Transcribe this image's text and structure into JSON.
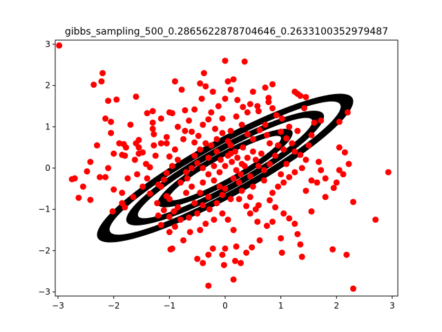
{
  "chart_data": {
    "type": "scatter",
    "title": "gibbs_sampling_500_0.2865622878704646_0.2633100352979487",
    "xlabel": "",
    "ylabel": "",
    "xlim": [
      -3.05,
      3.1
    ],
    "ylim": [
      -3.1,
      3.1
    ],
    "xticks": [
      -3,
      -2,
      -1,
      0,
      1,
      2,
      3
    ],
    "yticks": [
      -3,
      -2,
      -1,
      0,
      1,
      2,
      3
    ],
    "grid": false,
    "legend": "none",
    "contours": {
      "type": "ellipse-contours",
      "color": "#000000",
      "center": [
        0,
        0
      ],
      "angle_deg": 37.3,
      "bands": [
        {
          "outer": [
            2.85,
            0.64
          ],
          "inner": [
            2.58,
            0.5
          ]
        },
        {
          "outer": [
            2.2,
            0.49
          ],
          "inner": [
            1.95,
            0.36
          ]
        },
        {
          "outer": [
            1.5,
            0.35
          ],
          "inner": [
            1.25,
            0.23
          ]
        }
      ]
    },
    "series": [
      {
        "color": "#ff0000",
        "marker": "circle",
        "points": [
          [
            -2.98,
            2.97
          ],
          [
            -2.2,
            2.3
          ],
          [
            -2.22,
            2.1
          ],
          [
            -2.36,
            2.02
          ],
          [
            -1.95,
            1.66
          ],
          [
            -2.1,
            1.63
          ],
          [
            -1.6,
            1.73
          ],
          [
            -2.15,
            1.2
          ],
          [
            -2.05,
            1.12
          ],
          [
            -1.7,
            1.05
          ],
          [
            -2.0,
            0.35
          ],
          [
            -1.9,
            0.6
          ],
          [
            -1.82,
            0.58
          ],
          [
            -1.78,
            0.5
          ],
          [
            -1.55,
            0.68
          ],
          [
            -1.6,
            0.6
          ],
          [
            -1.55,
            0.5
          ],
          [
            -1.85,
            0.32
          ],
          [
            -1.8,
            0.3
          ],
          [
            -1.62,
            0.2
          ],
          [
            -2.42,
            0.15
          ],
          [
            -2.48,
            -0.08
          ],
          [
            -2.1,
            0.0
          ],
          [
            -2.15,
            -0.22
          ],
          [
            -2.25,
            -0.22
          ],
          [
            -2.75,
            -0.27
          ],
          [
            -2.7,
            -0.25
          ],
          [
            -2.55,
            -0.45
          ],
          [
            -2.63,
            -0.72
          ],
          [
            -2.42,
            -0.77
          ],
          [
            -2.0,
            -0.52
          ],
          [
            -1.85,
            -0.6
          ],
          [
            -1.85,
            -0.85
          ],
          [
            -1.8,
            -0.95
          ],
          [
            -2.02,
            -1.05
          ],
          [
            -1.65,
            -0.7
          ],
          [
            -1.75,
            -0.25
          ],
          [
            -1.58,
            -0.15
          ],
          [
            -1.48,
            0.38
          ],
          [
            -1.42,
            0.1
          ],
          [
            -1.35,
            0.02
          ],
          [
            -1.4,
            -0.25
          ],
          [
            -1.48,
            -0.45
          ],
          [
            -1.35,
            -0.62
          ],
          [
            -1.2,
            -0.4
          ],
          [
            -1.4,
            1.33
          ],
          [
            -1.3,
            1.38
          ],
          [
            -1.3,
            1.1
          ],
          [
            -1.28,
            0.82
          ],
          [
            -1.28,
            0.55
          ],
          [
            -1.25,
            0.3
          ],
          [
            -1.15,
            0.6
          ],
          [
            -1.0,
            1.35
          ],
          [
            -0.95,
            1.33
          ],
          [
            -0.85,
            1.0
          ],
          [
            -0.72,
            1.4
          ],
          [
            -0.78,
            1.9
          ],
          [
            -0.9,
            2.1
          ],
          [
            -0.55,
            1.42
          ],
          [
            -1.05,
            0.75
          ],
          [
            -1.05,
            0.6
          ],
          [
            -1.0,
            0.28
          ],
          [
            -0.95,
            0.05
          ],
          [
            -1.05,
            -0.12
          ],
          [
            -1.1,
            -0.28
          ],
          [
            -1.15,
            -0.45
          ],
          [
            -1.05,
            -0.68
          ],
          [
            -1.0,
            -0.75
          ],
          [
            -1.22,
            -0.85
          ],
          [
            -1.1,
            -1.02
          ],
          [
            -1.2,
            -1.15
          ],
          [
            -1.15,
            -1.38
          ],
          [
            -1.0,
            -1.18
          ],
          [
            -0.92,
            -1.05
          ],
          [
            -0.9,
            -1.42
          ],
          [
            -1.0,
            -1.55
          ],
          [
            -0.8,
            -1.25
          ],
          [
            -0.95,
            -1.95
          ],
          [
            -0.98,
            -1.97
          ],
          [
            -0.75,
            -1.75
          ],
          [
            -0.63,
            -1.55
          ],
          [
            -0.45,
            -1.5
          ],
          [
            -0.35,
            -1.35
          ],
          [
            -0.28,
            -1.0
          ],
          [
            -0.4,
            -0.9
          ],
          [
            -0.55,
            -0.85
          ],
          [
            -0.7,
            -0.6
          ],
          [
            -0.8,
            -0.35
          ],
          [
            -0.68,
            -0.25
          ],
          [
            -0.9,
            0.45
          ],
          [
            -0.75,
            0.7
          ],
          [
            -0.72,
            0.9
          ],
          [
            -0.6,
            0.88
          ],
          [
            -0.55,
            0.62
          ],
          [
            -0.45,
            0.45
          ],
          [
            -0.48,
            0.78
          ],
          [
            -0.4,
            1.05
          ],
          [
            -0.3,
            1.18
          ],
          [
            -0.25,
            1.35
          ],
          [
            -0.42,
            1.68
          ],
          [
            -0.45,
            2.05
          ],
          [
            -0.38,
            2.3
          ],
          [
            -0.35,
            1.98
          ],
          [
            -0.22,
            1.85
          ],
          [
            -0.12,
            1.5
          ],
          [
            0.0,
            1.68
          ],
          [
            -0.18,
            0.95
          ],
          [
            -0.05,
            0.85
          ],
          [
            0.05,
            0.65
          ],
          [
            0.1,
            0.55
          ],
          [
            -0.15,
            0.4
          ],
          [
            -0.3,
            0.25
          ],
          [
            -0.5,
            0.12
          ],
          [
            -0.4,
            0.0
          ],
          [
            -0.3,
            -0.15
          ],
          [
            -0.2,
            -0.3
          ],
          [
            -0.1,
            -0.45
          ],
          [
            -0.05,
            -0.65
          ],
          [
            -0.15,
            -0.85
          ],
          [
            -0.05,
            -1.1
          ],
          [
            0.05,
            -1.25
          ],
          [
            0.15,
            -1.5
          ],
          [
            0.2,
            -1.9
          ],
          [
            0.18,
            -2.25
          ],
          [
            0.15,
            -2.7
          ],
          [
            -0.3,
            -2.85
          ],
          [
            -0.5,
            -2.2
          ],
          [
            -0.4,
            -2.3
          ],
          [
            -0.3,
            -2.1
          ],
          [
            -0.22,
            -1.95
          ],
          [
            0.0,
            -1.95
          ],
          [
            -0.05,
            -2.1
          ],
          [
            -0.02,
            -2.35
          ],
          [
            0.28,
            -2.3
          ],
          [
            0.38,
            -2.05
          ],
          [
            0.48,
            -1.92
          ],
          [
            0.62,
            -1.75
          ],
          [
            0.75,
            -1.4
          ],
          [
            0.58,
            -1.3
          ],
          [
            0.45,
            -1.1
          ],
          [
            0.38,
            -0.92
          ],
          [
            0.25,
            -0.75
          ],
          [
            0.3,
            -0.55
          ],
          [
            0.5,
            -0.45
          ],
          [
            0.45,
            -0.2
          ],
          [
            0.35,
            0.05
          ],
          [
            0.22,
            0.25
          ],
          [
            0.12,
            0.15
          ],
          [
            0.0,
            0.05
          ],
          [
            -0.08,
            0.2
          ],
          [
            0.05,
            0.3
          ],
          [
            0.18,
            0.4
          ],
          [
            0.32,
            0.5
          ],
          [
            0.5,
            0.7
          ],
          [
            0.62,
            0.92
          ],
          [
            0.72,
            1.05
          ],
          [
            0.6,
            1.38
          ],
          [
            0.45,
            1.55
          ],
          [
            0.32,
            1.48
          ],
          [
            0.22,
            1.65
          ],
          [
            0.1,
            1.9
          ],
          [
            0.05,
            2.1
          ],
          [
            0.15,
            2.15
          ],
          [
            0.0,
            2.6
          ],
          [
            0.35,
            2.58
          ],
          [
            0.5,
            1.85
          ],
          [
            0.58,
            1.5
          ],
          [
            0.72,
            1.95
          ],
          [
            0.85,
            2.03
          ],
          [
            0.78,
            1.7
          ],
          [
            0.85,
            1.45
          ],
          [
            0.78,
            1.6
          ],
          [
            0.92,
            1.28
          ],
          [
            1.02,
            1.2
          ],
          [
            1.0,
            0.88
          ],
          [
            1.15,
            1.0
          ],
          [
            1.1,
            0.72
          ],
          [
            1.2,
            0.6
          ],
          [
            1.25,
            0.4
          ],
          [
            1.35,
            0.32
          ],
          [
            1.45,
            0.2
          ],
          [
            1.38,
            0.0
          ],
          [
            1.25,
            -0.1
          ],
          [
            1.15,
            -0.22
          ],
          [
            1.05,
            -0.35
          ],
          [
            0.95,
            -0.45
          ],
          [
            0.85,
            -0.6
          ],
          [
            0.8,
            -0.78
          ],
          [
            0.9,
            -0.95
          ],
          [
            1.05,
            -1.1
          ],
          [
            1.15,
            -1.22
          ],
          [
            1.25,
            -1.35
          ],
          [
            1.3,
            -1.6
          ],
          [
            1.35,
            -1.85
          ],
          [
            1.38,
            -2.15
          ],
          [
            1.0,
            -1.7
          ],
          [
            1.02,
            -2.05
          ],
          [
            1.8,
            -0.7
          ],
          [
            1.65,
            -0.35
          ],
          [
            1.55,
            -0.3
          ],
          [
            1.72,
            -0.05
          ],
          [
            1.68,
            0.15
          ],
          [
            1.5,
            0.55
          ],
          [
            1.6,
            1.1
          ],
          [
            1.42,
            1.45
          ],
          [
            1.3,
            1.8
          ],
          [
            1.35,
            1.75
          ],
          [
            1.45,
            1.72
          ],
          [
            1.25,
            1.85
          ],
          [
            1.72,
            1.15
          ],
          [
            2.05,
            1.12
          ],
          [
            2.2,
            1.35
          ],
          [
            2.05,
            0.5
          ],
          [
            2.15,
            0.38
          ],
          [
            2.22,
            0.1
          ],
          [
            2.05,
            -0.05
          ],
          [
            2.12,
            -0.15
          ],
          [
            2.0,
            -0.35
          ],
          [
            1.95,
            -0.48
          ],
          [
            2.3,
            -0.82
          ],
          [
            2.3,
            -2.92
          ],
          [
            2.7,
            -1.25
          ],
          [
            2.93,
            -0.1
          ],
          [
            1.93,
            -1.97
          ],
          [
            2.18,
            -2.1
          ],
          [
            0.2,
            -0.05
          ],
          [
            0.3,
            0.1
          ],
          [
            0.4,
            0.25
          ],
          [
            -0.1,
            -0.1
          ],
          [
            -0.2,
            0.05
          ],
          [
            0.15,
            -0.25
          ],
          [
            0.25,
            -0.35
          ],
          [
            0.55,
            0.2
          ],
          [
            0.65,
            0.35
          ],
          [
            0.7,
            -0.05
          ],
          [
            0.8,
            0.1
          ],
          [
            0.9,
            0.3
          ],
          [
            -0.6,
            -0.45
          ],
          [
            -0.7,
            -0.1
          ],
          [
            -0.55,
            0.3
          ],
          [
            -0.35,
            0.6
          ],
          [
            0.1,
            0.9
          ],
          [
            0.3,
            1.05
          ],
          [
            0.4,
            0.82
          ],
          [
            -0.25,
            0.55
          ],
          [
            0.0,
            -0.5
          ],
          [
            0.1,
            -0.75
          ],
          [
            -0.45,
            -0.6
          ],
          [
            -0.3,
            -0.7
          ],
          [
            0.6,
            -0.9
          ],
          [
            0.7,
            -0.3
          ],
          [
            1.1,
            0.1
          ],
          [
            1.0,
            -0.15
          ],
          [
            0.95,
            0.55
          ],
          [
            -0.85,
            0.2
          ],
          [
            -0.6,
            0.0
          ],
          [
            0.45,
            -0.7
          ],
          [
            0.55,
            -1.0
          ],
          [
            -0.65,
            1.15
          ],
          [
            0.2,
            1.25
          ],
          [
            0.8,
            0.6
          ],
          [
            -1.3,
            0.95
          ],
          [
            -1.55,
            0.35
          ],
          [
            -0.05,
            1.2
          ],
          [
            0.4,
            1.35
          ],
          [
            1.55,
            0.8
          ],
          [
            1.3,
            0.9
          ],
          [
            -0.85,
            -0.95
          ],
          [
            -0.65,
            -1.2
          ],
          [
            0.85,
            -1.3
          ],
          [
            1.55,
            -1.05
          ],
          [
            1.8,
            -0.25
          ],
          [
            1.45,
            -0.55
          ],
          [
            -2.3,
            0.55
          ],
          [
            -2.05,
            0.85
          ],
          [
            -1.15,
            1.2
          ],
          [
            0.6,
            0.05
          ],
          [
            -0.4,
            -0.35
          ],
          [
            0.1,
            0.35
          ],
          [
            0.28,
            -0.15
          ],
          [
            -0.15,
            0.7
          ],
          [
            0.5,
            0.4
          ],
          [
            0.75,
            0.8
          ],
          [
            1.05,
            0.45
          ],
          [
            -0.5,
            -1.1
          ],
          [
            -0.2,
            -1.25
          ]
        ]
      }
    ]
  }
}
